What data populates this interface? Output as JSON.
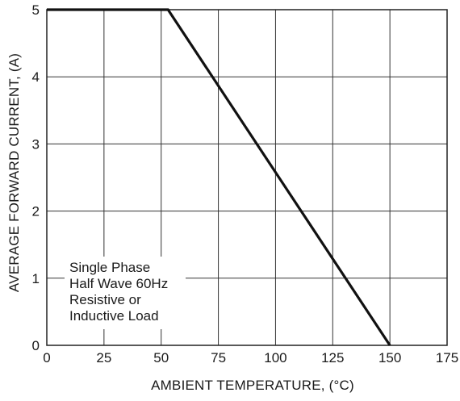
{
  "chart_data": {
    "type": "line",
    "title": "",
    "xlabel": "AMBIENT TEMPERATURE, (°C)",
    "ylabel": "AVERAGE FORWARD CURRENT, (A)",
    "xlim": [
      0,
      175
    ],
    "ylim": [
      0,
      5
    ],
    "x_ticks": [
      0,
      25,
      50,
      75,
      100,
      125,
      150,
      175
    ],
    "y_ticks": [
      0,
      1,
      2,
      3,
      4,
      5
    ],
    "grid": true,
    "series": [
      {
        "x": [
          0,
          53,
          150
        ],
        "y": [
          5,
          5,
          0
        ],
        "color": "#111111"
      }
    ],
    "annotations": [
      "Single Phase",
      "Half Wave 60Hz",
      "Resistive or",
      "Inductive Load"
    ]
  }
}
